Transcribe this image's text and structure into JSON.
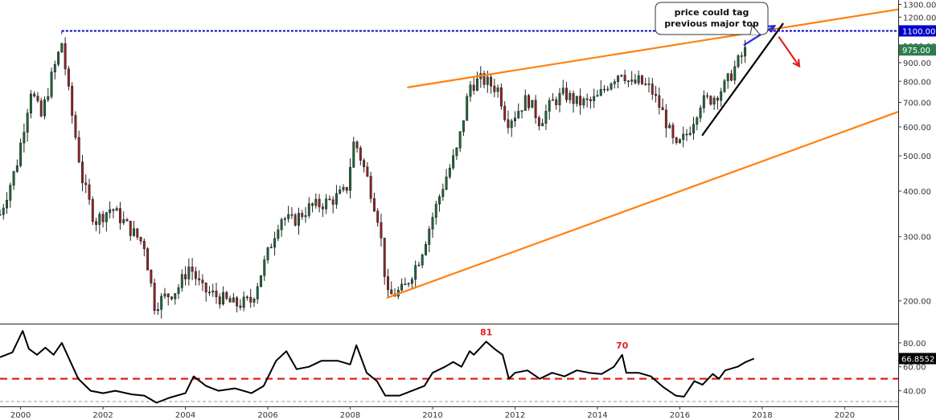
{
  "chart_data": [
    {
      "type": "candlestick",
      "name": "price",
      "y_scale": "log",
      "ylim": [
        175,
        1330
      ],
      "y_ticks": [
        200,
        300,
        400,
        500,
        600,
        700,
        800,
        900,
        1000,
        1100,
        1200,
        1300
      ],
      "y_tick_labels": [
        "200.00",
        "300.00",
        "400.00",
        "500.00",
        "600.00",
        "700.00",
        "800.00",
        "900.00",
        "1000.00",
        "1100.00",
        "1200.00",
        "1300.00"
      ],
      "xlim": [
        1999.5,
        2021.3
      ],
      "x_ticks": [
        2000,
        2002,
        2004,
        2006,
        2008,
        2010,
        2012,
        2014,
        2016,
        2018,
        2020
      ],
      "x_tick_labels": [
        "2000",
        "2002",
        "2004",
        "2006",
        "2008",
        "2010",
        "2012",
        "2014",
        "2016",
        "2018",
        "2020"
      ],
      "up_color": "#1e6b3a",
      "down_color": "#a02020",
      "price_path": [
        [
          1999.5,
          345
        ],
        [
          1999.9,
          470
        ],
        [
          2000.25,
          760
        ],
        [
          2000.5,
          640
        ],
        [
          2000.75,
          820
        ],
        [
          2001.0,
          1020
        ],
        [
          2001.2,
          700
        ],
        [
          2001.5,
          430
        ],
        [
          2001.8,
          330
        ],
        [
          2002.2,
          360
        ],
        [
          2002.6,
          320
        ],
        [
          2003.0,
          285
        ],
        [
          2003.25,
          195
        ],
        [
          2003.5,
          205
        ],
        [
          2003.8,
          215
        ],
        [
          2004.1,
          250
        ],
        [
          2004.4,
          215
        ],
        [
          2004.8,
          205
        ],
        [
          2005.2,
          195
        ],
        [
          2005.6,
          200
        ],
        [
          2006.0,
          270
        ],
        [
          2006.3,
          340
        ],
        [
          2006.6,
          330
        ],
        [
          2007.0,
          360
        ],
        [
          2007.5,
          375
        ],
        [
          2007.9,
          400
        ],
        [
          2008.1,
          555
        ],
        [
          2008.4,
          440
        ],
        [
          2008.7,
          330
        ],
        [
          2008.9,
          205
        ],
        [
          2009.3,
          215
        ],
        [
          2009.7,
          265
        ],
        [
          2010.0,
          340
        ],
        [
          2010.3,
          430
        ],
        [
          2010.6,
          520
        ],
        [
          2010.9,
          780
        ],
        [
          2011.2,
          810
        ],
        [
          2011.6,
          760
        ],
        [
          2011.8,
          620
        ],
        [
          2012.0,
          650
        ],
        [
          2012.3,
          720
        ],
        [
          2012.6,
          620
        ],
        [
          2012.9,
          700
        ],
        [
          2013.2,
          740
        ],
        [
          2013.5,
          700
        ],
        [
          2013.8,
          700
        ],
        [
          2014.0,
          720
        ],
        [
          2014.3,
          800
        ],
        [
          2014.6,
          860
        ],
        [
          2014.8,
          780
        ],
        [
          2015.0,
          800
        ],
        [
          2015.3,
          760
        ],
        [
          2015.6,
          650
        ],
        [
          2015.9,
          520
        ],
        [
          2016.2,
          580
        ],
        [
          2016.5,
          700
        ],
        [
          2016.8,
          720
        ],
        [
          2017.1,
          780
        ],
        [
          2017.4,
          900
        ],
        [
          2017.6,
          975
        ]
      ],
      "annotations": {
        "callout_text": [
          "price could tag",
          "previous major top"
        ],
        "level_label": "1100.00",
        "level_value": 1100,
        "last_price_label": "975.00",
        "last_price_value": 975,
        "upper_channel": [
          [
            2009.4,
            770
          ],
          [
            2021.3,
            1260
          ]
        ],
        "lower_channel": [
          [
            2008.9,
            204
          ],
          [
            2021.3,
            660
          ]
        ],
        "support_line": [
          [
            2016.55,
            570
          ],
          [
            2018.5,
            1150
          ]
        ],
        "level_line_start_x": 2001.0,
        "blue_arrow": [
          [
            2017.55,
            1005
          ],
          [
            2018.3,
            1135
          ]
        ],
        "red_arrow": [
          [
            2018.4,
            1060
          ],
          [
            2018.9,
            880
          ]
        ],
        "level_color": "#0000cc",
        "channel_color": "#ff7f0e",
        "support_color": "#000000",
        "up_arrow_color": "#1f2be0",
        "down_arrow_color": "#e02020",
        "last_price_color": "#2e7d4f"
      }
    },
    {
      "type": "line",
      "name": "oscillator",
      "ylim": [
        29,
        94
      ],
      "y_ticks": [
        40,
        60,
        80
      ],
      "y_tick_labels": [
        "40.00",
        "60.00",
        "80.00"
      ],
      "reference_line": 50,
      "reference_color": "#e02020",
      "line_color": "#000000",
      "last_value_label": "66.8552",
      "last_value": 66.8552,
      "points": [
        [
          1999.5,
          68
        ],
        [
          1999.8,
          72
        ],
        [
          2000.05,
          90
        ],
        [
          2000.2,
          75
        ],
        [
          2000.4,
          70
        ],
        [
          2000.6,
          76
        ],
        [
          2000.8,
          70
        ],
        [
          2001.0,
          80
        ],
        [
          2001.2,
          65
        ],
        [
          2001.4,
          50
        ],
        [
          2001.7,
          40
        ],
        [
          2002.0,
          38
        ],
        [
          2002.3,
          40
        ],
        [
          2002.7,
          37
        ],
        [
          2003.0,
          36
        ],
        [
          2003.3,
          30
        ],
        [
          2003.6,
          34
        ],
        [
          2004.0,
          38
        ],
        [
          2004.2,
          52
        ],
        [
          2004.5,
          44
        ],
        [
          2004.8,
          40
        ],
        [
          2005.2,
          42
        ],
        [
          2005.6,
          38
        ],
        [
          2005.9,
          44
        ],
        [
          2006.2,
          65
        ],
        [
          2006.45,
          73
        ],
        [
          2006.7,
          58
        ],
        [
          2007.0,
          60
        ],
        [
          2007.3,
          65
        ],
        [
          2007.7,
          65
        ],
        [
          2008.0,
          62
        ],
        [
          2008.15,
          78
        ],
        [
          2008.4,
          55
        ],
        [
          2008.65,
          48
        ],
        [
          2008.85,
          36
        ],
        [
          2009.2,
          36
        ],
        [
          2009.5,
          40
        ],
        [
          2009.8,
          44
        ],
        [
          2010.0,
          55
        ],
        [
          2010.3,
          60
        ],
        [
          2010.5,
          64
        ],
        [
          2010.7,
          60
        ],
        [
          2010.9,
          73
        ],
        [
          2011.0,
          70
        ],
        [
          2011.3,
          81
        ],
        [
          2011.5,
          75
        ],
        [
          2011.7,
          70
        ],
        [
          2011.85,
          50
        ],
        [
          2012.0,
          55
        ],
        [
          2012.3,
          57
        ],
        [
          2012.6,
          50
        ],
        [
          2012.9,
          55
        ],
        [
          2013.2,
          52
        ],
        [
          2013.5,
          57
        ],
        [
          2013.8,
          55
        ],
        [
          2014.1,
          54
        ],
        [
          2014.4,
          60
        ],
        [
          2014.6,
          70
        ],
        [
          2014.7,
          55
        ],
        [
          2015.0,
          55
        ],
        [
          2015.3,
          52
        ],
        [
          2015.6,
          43
        ],
        [
          2015.9,
          36
        ],
        [
          2016.1,
          35
        ],
        [
          2016.35,
          48
        ],
        [
          2016.55,
          45
        ],
        [
          2016.8,
          54
        ],
        [
          2016.95,
          50
        ],
        [
          2017.1,
          57
        ],
        [
          2017.4,
          60
        ],
        [
          2017.6,
          64
        ],
        [
          2017.8,
          66.86
        ]
      ],
      "annotations": [
        {
          "text": "81",
          "x": 2011.3,
          "y": 81
        },
        {
          "text": "70",
          "x": 2014.6,
          "y": 70
        }
      ]
    }
  ]
}
